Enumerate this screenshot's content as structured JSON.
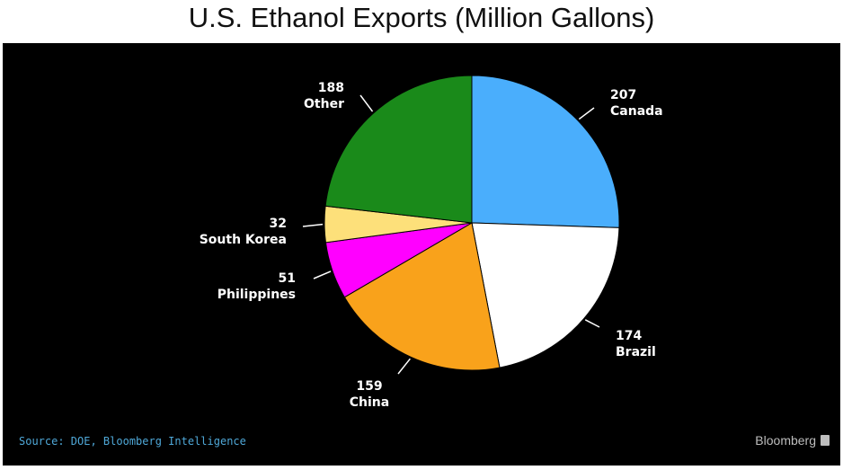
{
  "chart_data": {
    "type": "pie",
    "title": "U.S. Ethanol Exports (Million Gallons)",
    "slices": [
      {
        "label": "Canada",
        "value": 207,
        "color": "#4aaefc"
      },
      {
        "label": "Brazil",
        "value": 174,
        "color": "#ffffff"
      },
      {
        "label": "China",
        "value": 159,
        "color": "#f9a21b"
      },
      {
        "label": "Philippines",
        "value": 51,
        "color": "#ff00ff"
      },
      {
        "label": "South Korea",
        "value": 32,
        "color": "#fde07a"
      },
      {
        "label": "Other",
        "value": 188,
        "color": "#1a8a1a"
      }
    ],
    "start": "top, clockwise",
    "source": "Source: DOE, Bloomberg Intelligence",
    "brand": "Bloomberg"
  }
}
